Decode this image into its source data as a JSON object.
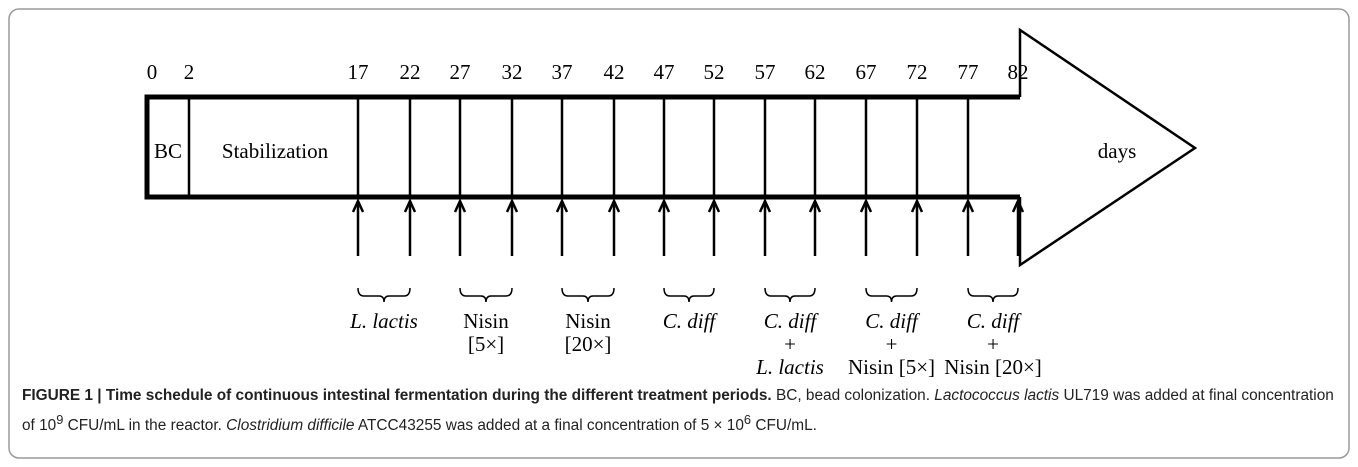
{
  "figure": {
    "days": [
      "0",
      "2",
      "17",
      "22",
      "27",
      "32",
      "37",
      "42",
      "47",
      "52",
      "57",
      "62",
      "67",
      "72",
      "77",
      "82"
    ],
    "sections": [
      "BC",
      "Stabilization"
    ],
    "axis_label": "days",
    "treatments": [
      {
        "lines": [
          "L. lactis"
        ]
      },
      {
        "lines": [
          "Nisin",
          "[5×]"
        ]
      },
      {
        "lines": [
          "Nisin",
          "[20×]"
        ]
      },
      {
        "lines": [
          "C. diff"
        ]
      },
      {
        "lines": [
          "C. diff",
          "+",
          "L. lactis"
        ]
      },
      {
        "lines": [
          "C. diff",
          "+",
          "Nisin [5×]"
        ]
      },
      {
        "lines": [
          "C. diff",
          "+",
          "Nisin [20×]"
        ]
      }
    ],
    "caption": {
      "label": "FIGURE 1 | Time schedule of continuous intestinal fermentation during the different treatment periods.",
      "parts": [
        " BC, bead colonization. ",
        "Lactococcus lactis",
        " UL719 was added at final concentration of 10",
        "9",
        " CFU/mL in the reactor. ",
        "Clostridium difficile",
        " ATCC43255 was added at a final concentration of 5 × 10",
        "6",
        " CFU/mL."
      ]
    }
  }
}
